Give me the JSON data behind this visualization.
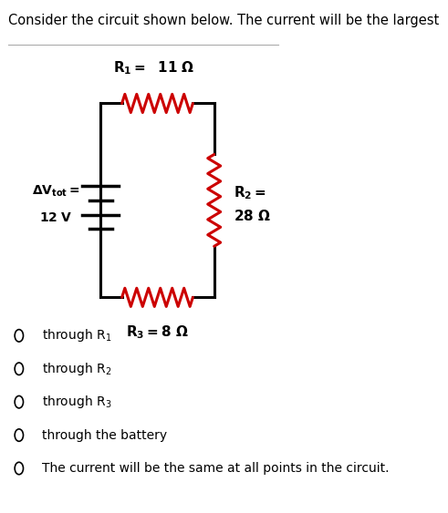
{
  "title": "Consider the circuit shown below. The current will be the largest",
  "bg_color": "#ffffff",
  "circuit": {
    "resistor_color": "#cc0000",
    "wire_color": "#000000"
  },
  "options": [
    "through R$_1$",
    "through R$_2$",
    "through R$_3$",
    "through the battery",
    "The current will be the same at all points in the circuit."
  ],
  "font_size_title": 10.5,
  "font_size_options": 10,
  "font_size_labels": 11
}
